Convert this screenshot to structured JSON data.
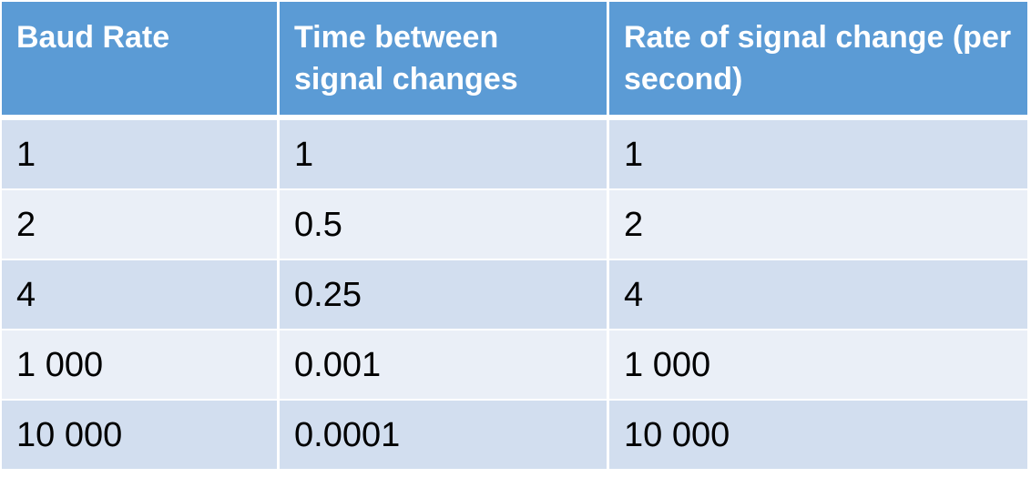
{
  "table": {
    "headers": [
      "Baud Rate",
      "Time between signal changes",
      "Rate of signal change (per second)"
    ],
    "rows": [
      [
        "1",
        "1",
        "1"
      ],
      [
        "2",
        "0.5",
        "2"
      ],
      [
        "4",
        "0.25",
        "4"
      ],
      [
        "1 000",
        "0.001",
        "1 000"
      ],
      [
        "10 000",
        "0.0001",
        "10 000"
      ]
    ]
  },
  "colors": {
    "header_background": "#5b9bd5",
    "header_text": "#ffffff",
    "row_band_dark": "#d2deef",
    "row_band_light": "#eaeff7"
  }
}
